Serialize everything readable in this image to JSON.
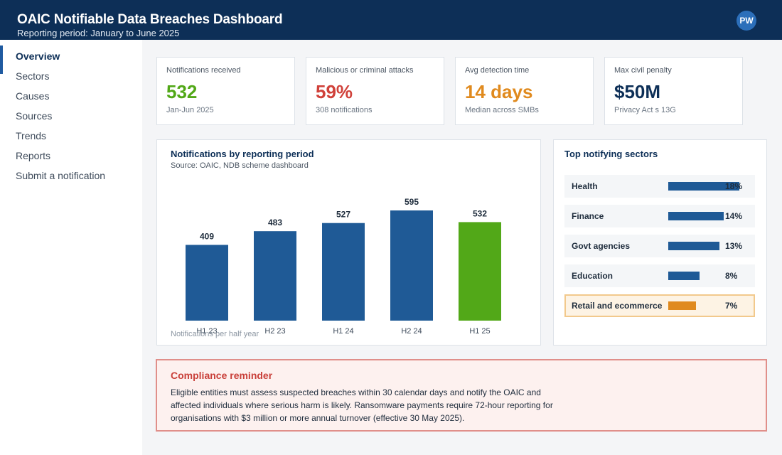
{
  "header": {
    "title": "OAIC Notifiable Data Breaches Dashboard",
    "subtitle": "Reporting period: January to June 2025",
    "avatar_initials": "PW"
  },
  "sidebar": {
    "items": [
      {
        "label": "Overview",
        "active": true
      },
      {
        "label": "Sectors"
      },
      {
        "label": "Causes"
      },
      {
        "label": "Sources"
      },
      {
        "label": "Trends"
      },
      {
        "label": "Reports"
      },
      {
        "label": "Submit a notification"
      }
    ]
  },
  "kpis": [
    {
      "label": "Notifications received",
      "value": "532",
      "sub": "Jan-Jun 2025",
      "color": "#52a818"
    },
    {
      "label": "Malicious or criminal attacks",
      "value": "59%",
      "sub": "308 notifications",
      "color": "#d0413a"
    },
    {
      "label": "Avg detection time",
      "value": "14 days",
      "sub": "Median across SMBs",
      "color": "#e08a1e"
    },
    {
      "label": "Max civil penalty",
      "value": "$50M",
      "sub": "Privacy Act s 13G",
      "color": "#0d2f57"
    }
  ],
  "chart_panel": {
    "title": "Notifications by reporting period",
    "source": "Source: OAIC, NDB scheme dashboard"
  },
  "chart_data": {
    "type": "bar",
    "categories": [
      "H1 23",
      "H2 23",
      "H1 24",
      "H2 24",
      "H1 25"
    ],
    "values": [
      409,
      483,
      527,
      595,
      532
    ],
    "title": "Notifications by reporting period",
    "xlabel": "Notifications per half year",
    "ylabel": "",
    "ylim": [
      0,
      640
    ],
    "colors": {
      "default": "#1f5a96",
      "highlight": "#52a818"
    },
    "highlight_index": 4
  },
  "sectors": {
    "title": "Top notifying sectors",
    "items": [
      {
        "name": "Health",
        "pct": "18%",
        "value": 18
      },
      {
        "name": "Finance",
        "pct": "14%",
        "value": 14
      },
      {
        "name": "Govt agencies",
        "pct": "13%",
        "value": 13
      },
      {
        "name": "Education",
        "pct": "8%",
        "value": 8
      },
      {
        "name": "Retail and ecommerce",
        "pct": "7%",
        "value": 7,
        "highlight": true
      }
    ],
    "colors": {
      "default": "#1f5a96",
      "highlight": "#e08a1e"
    }
  },
  "alert": {
    "title": "Compliance reminder",
    "body": "Eligible entities must assess suspected breaches within 30 calendar days and notify the OAIC and affected individuals where serious harm is likely. Ransomware payments require 72-hour reporting for organisations with $3 million or more annual turnover (effective 30 May 2025)."
  }
}
